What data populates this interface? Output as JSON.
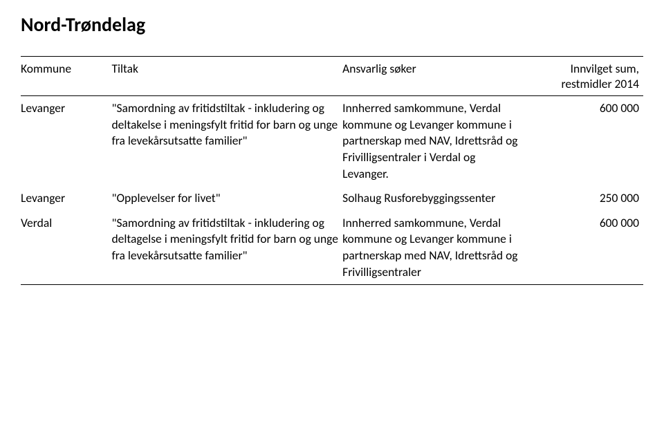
{
  "title": "Nord-Trøndelag",
  "columns": {
    "c1": "Kommune",
    "c2": "Tiltak",
    "c3": "Ansvarlig søker",
    "c4a": "Innvilget sum,",
    "c4b": "restmidler 2014"
  },
  "rows": [
    {
      "kommune": "Levanger",
      "tiltak": "\"Samordning av fritidstiltak - inkludering og deltakelse i meningsfylt fritid for barn og unge fra levekårsutsatte familier\"",
      "soker": "Innherred samkommune, Verdal kommune og Levanger kommune i partnerskap med NAV, Idrettsråd og Frivilligsentraler i Verdal og Levanger.",
      "sum": "600 000"
    },
    {
      "kommune": "Levanger",
      "tiltak": "\"Opplevelser for livet\"",
      "soker": "Solhaug Rusforebyggingssenter",
      "sum": "250 000"
    },
    {
      "kommune": "Verdal",
      "tiltak": "\"Samordning av fritidstiltak - inkludering og deltagelse i meningsfylt fritid for barn og unge fra levekårsutsatte familier\"",
      "soker": "Innherred samkommune, Verdal kommune og Levanger kommune i partnerskap med NAV, Idrettsråd og Frivilligsentraler",
      "sum": "600 000"
    }
  ]
}
